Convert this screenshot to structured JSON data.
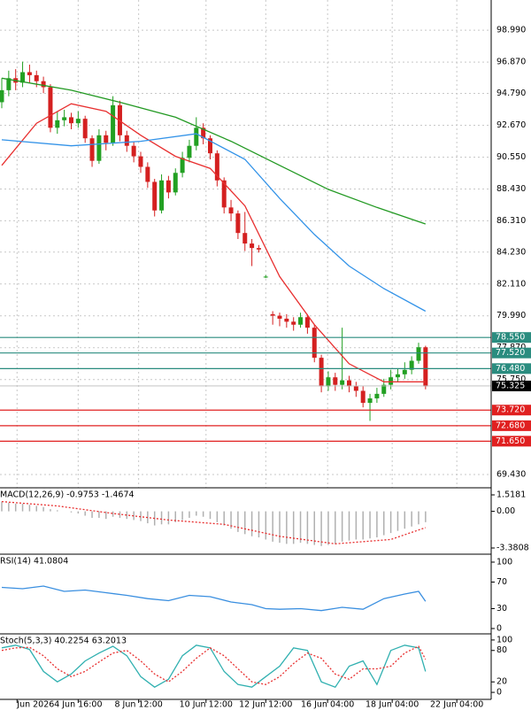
{
  "chart_data": [
    {
      "type": "candlestick",
      "up_color": "#22a022",
      "down_color": "#d42020",
      "grid": true,
      "ylim": [
        68.55,
        101.0
      ],
      "yticks": [
        {
          "value": 98.99,
          "label": "98.990"
        },
        {
          "value": 96.87,
          "label": "96.870"
        },
        {
          "value": 94.79,
          "label": "94.790"
        },
        {
          "value": 92.67,
          "label": "92.670"
        },
        {
          "value": 90.55,
          "label": "90.550"
        },
        {
          "value": 88.43,
          "label": "88.430"
        },
        {
          "value": 86.31,
          "label": "86.310"
        },
        {
          "value": 84.23,
          "label": "84.230"
        },
        {
          "value": 82.11,
          "label": "82.110"
        },
        {
          "value": 79.99,
          "label": "79.990"
        },
        {
          "value": 77.87,
          "label": "77.870"
        },
        {
          "value": 75.75,
          "label": "75.750"
        },
        {
          "value": 69.43,
          "label": "69.430"
        }
      ],
      "ohlc": [
        [
          94.2,
          95.8,
          93.8,
          95.0
        ],
        [
          95.0,
          96.3,
          94.6,
          95.8
        ],
        [
          95.8,
          96.4,
          95.0,
          95.5
        ],
        [
          95.5,
          96.9,
          95.2,
          96.2
        ],
        [
          96.2,
          96.7,
          95.5,
          96.0
        ],
        [
          96.0,
          96.3,
          95.2,
          95.6
        ],
        [
          95.6,
          95.9,
          94.8,
          95.2
        ],
        [
          95.2,
          95.4,
          92.2,
          92.5
        ],
        [
          92.5,
          93.6,
          92.1,
          93.0
        ],
        [
          93.0,
          93.7,
          92.6,
          93.2
        ],
        [
          93.2,
          93.5,
          92.4,
          92.8
        ],
        [
          92.8,
          93.6,
          92.5,
          93.1
        ],
        [
          93.1,
          93.3,
          91.5,
          91.8
        ],
        [
          91.8,
          92.0,
          89.9,
          90.3
        ],
        [
          90.3,
          92.4,
          90.1,
          92.0
        ],
        [
          92.0,
          92.3,
          91.0,
          91.5
        ],
        [
          91.5,
          94.6,
          91.3,
          94.0
        ],
        [
          94.0,
          94.3,
          91.6,
          92.0
        ],
        [
          92.0,
          92.3,
          90.9,
          91.3
        ],
        [
          91.3,
          91.6,
          90.2,
          90.6
        ],
        [
          90.6,
          90.9,
          89.5,
          89.9
        ],
        [
          89.9,
          90.2,
          88.5,
          88.9
        ],
        [
          88.9,
          89.1,
          86.6,
          87.0
        ],
        [
          87.0,
          89.4,
          86.8,
          89.0
        ],
        [
          89.0,
          89.3,
          87.8,
          88.2
        ],
        [
          88.2,
          89.8,
          88.0,
          89.5
        ],
        [
          89.5,
          90.9,
          89.2,
          90.5
        ],
        [
          90.5,
          91.7,
          90.2,
          91.3
        ],
        [
          91.3,
          93.2,
          91.0,
          92.5
        ],
        [
          92.5,
          92.8,
          91.4,
          91.8
        ],
        [
          91.8,
          92.0,
          90.4,
          90.8
        ],
        [
          90.8,
          91.0,
          88.6,
          89.0
        ],
        [
          89.0,
          89.2,
          86.8,
          87.2
        ],
        [
          87.2,
          87.7,
          86.3,
          86.8
        ],
        [
          86.8,
          87.0,
          85.1,
          85.5
        ],
        [
          85.5,
          86.9,
          84.3,
          84.8
        ],
        [
          84.8,
          85.1,
          83.3,
          84.5
        ],
        [
          84.5,
          84.7,
          84.2,
          84.4
        ],
        [
          82.6,
          82.7,
          82.5,
          82.6
        ],
        [
          80.1,
          80.3,
          79.4,
          80.0
        ],
        [
          80.0,
          80.2,
          79.3,
          79.8
        ],
        [
          79.8,
          80.1,
          79.2,
          79.6
        ],
        [
          79.6,
          79.9,
          79.0,
          79.4
        ],
        [
          79.4,
          80.2,
          79.2,
          79.9
        ],
        [
          79.9,
          80.1,
          78.8,
          79.2
        ],
        [
          79.2,
          79.4,
          76.9,
          77.2
        ],
        [
          77.2,
          77.4,
          74.9,
          75.3
        ],
        [
          75.3,
          76.3,
          75.0,
          75.9
        ],
        [
          75.9,
          76.2,
          75.0,
          75.4
        ],
        [
          75.4,
          79.2,
          75.1,
          75.7
        ],
        [
          75.7,
          76.0,
          74.9,
          75.3
        ],
        [
          75.3,
          75.6,
          74.6,
          75.0
        ],
        [
          75.0,
          75.3,
          73.9,
          74.2
        ],
        [
          74.2,
          74.8,
          73.0,
          74.5
        ],
        [
          74.5,
          75.2,
          74.2,
          74.8
        ],
        [
          74.8,
          75.8,
          74.6,
          75.4
        ],
        [
          75.4,
          76.4,
          75.1,
          75.9
        ],
        [
          75.9,
          76.5,
          75.6,
          76.1
        ],
        [
          76.1,
          76.9,
          75.8,
          76.4
        ],
        [
          76.4,
          77.3,
          76.1,
          77.0
        ],
        [
          77.0,
          78.2,
          76.8,
          77.9
        ],
        [
          77.9,
          78.0,
          75.1,
          75.3
        ]
      ],
      "lines": [
        {
          "color": "#e83030",
          "x": [
            0,
            5,
            10,
            15,
            20,
            25,
            30,
            35,
            40,
            45,
            50,
            55,
            61
          ],
          "values": [
            90.0,
            92.8,
            94.1,
            93.6,
            92.0,
            90.6,
            89.8,
            87.3,
            82.6,
            79.4,
            76.8,
            75.6,
            75.6
          ]
        },
        {
          "color": "#3393e8",
          "x": [
            0,
            10,
            20,
            28,
            35,
            40,
            45,
            50,
            55,
            61
          ],
          "values": [
            91.7,
            91.3,
            91.6,
            92.1,
            90.4,
            87.8,
            85.4,
            83.3,
            81.8,
            80.3
          ]
        },
        {
          "color": "#229922",
          "x": [
            0,
            10,
            17,
            25,
            33,
            40,
            47,
            54,
            61
          ],
          "values": [
            95.8,
            95.0,
            94.2,
            93.2,
            91.6,
            90.0,
            88.4,
            87.2,
            86.1
          ]
        }
      ],
      "levels": [
        {
          "value": 78.55,
          "label": "78.550",
          "color": "#2a8c7f"
        },
        {
          "value": 77.52,
          "label": "77.520",
          "color": "#2a8c7f"
        },
        {
          "value": 76.48,
          "label": "76.480",
          "color": "#2a8c7f"
        },
        {
          "value": 75.325,
          "label": "75.325",
          "color": "#000000"
        },
        {
          "value": 73.72,
          "label": "73.720",
          "color": "#e02020"
        },
        {
          "value": 72.68,
          "label": "72.680",
          "color": "#e02020"
        },
        {
          "value": 71.65,
          "label": "71.650",
          "color": "#e02020"
        }
      ]
    },
    {
      "type": "macd",
      "title": "MACD(12,26,9) -0.9753 -1.4674",
      "ylim": [
        -3.87,
        2.008
      ],
      "yticks": [
        1.5181,
        {
          "value": 0,
          "label": "0.00"
        },
        -3.3808
      ],
      "hist_color": "#b0b0b0",
      "values": [
        0.9,
        0.8,
        0.7,
        0.7,
        0.6,
        0.5,
        0.4,
        0.2,
        0.1,
        0.0,
        -0.1,
        -0.2,
        -0.4,
        -0.6,
        -0.6,
        -0.7,
        -0.5,
        -0.6,
        -0.7,
        -0.8,
        -0.9,
        -1.1,
        -1.3,
        -1.2,
        -1.2,
        -1.0,
        -0.8,
        -0.6,
        -0.4,
        -0.5,
        -0.7,
        -1.0,
        -1.3,
        -1.6,
        -1.9,
        -2.1,
        -2.3,
        -2.4,
        -2.6,
        -2.8,
        -2.9,
        -3.0,
        -3.0,
        -2.9,
        -3.0,
        -3.1,
        -3.2,
        -3.1,
        -3.0,
        -2.8,
        -2.7,
        -2.6,
        -2.6,
        -2.5,
        -2.4,
        -2.2,
        -2.0,
        -1.8,
        -1.6,
        -1.4,
        -1.2,
        -1.0
      ],
      "lines": [
        {
          "color": "#e83030",
          "dashed": true,
          "x": [
            0,
            8,
            16,
            24,
            32,
            40,
            48,
            56,
            61
          ],
          "values": [
            0.9,
            0.5,
            -0.2,
            -0.8,
            -1.2,
            -2.3,
            -3.0,
            -2.6,
            -1.5
          ]
        }
      ]
    },
    {
      "type": "rsi",
      "title": "RSI(14) 41.0804",
      "ylim": [
        -6.7,
        109.3
      ],
      "yticks": [
        100,
        70,
        30,
        0
      ],
      "lines": [
        {
          "color": "#3a8fe0",
          "x": [
            0,
            3,
            6,
            9,
            12,
            15,
            18,
            21,
            24,
            27,
            30,
            33,
            36,
            38,
            40,
            43,
            46,
            49,
            52,
            55,
            58,
            60,
            61
          ],
          "values": [
            62,
            60,
            64,
            56,
            58,
            54,
            50,
            45,
            42,
            50,
            48,
            40,
            36,
            30,
            29,
            30,
            27,
            32,
            29,
            45,
            52,
            56,
            41
          ]
        }
      ]
    },
    {
      "type": "stoch",
      "title": "Stoch(5,3,3) 40.2254 63.2013",
      "ylim": [
        -11.7,
        108.3
      ],
      "yticks": [
        100,
        80,
        20,
        0
      ],
      "lines": [
        {
          "color": "#30b0b0",
          "x": [
            0,
            2,
            4,
            6,
            8,
            10,
            12,
            14,
            16,
            18,
            20,
            22,
            24,
            26,
            28,
            30,
            32,
            34,
            36,
            38,
            40,
            42,
            44,
            46,
            48,
            50,
            52,
            54,
            56,
            58,
            60,
            61
          ],
          "values": [
            85,
            90,
            82,
            40,
            20,
            35,
            60,
            75,
            88,
            70,
            30,
            10,
            25,
            70,
            90,
            85,
            40,
            15,
            10,
            30,
            50,
            85,
            80,
            20,
            10,
            50,
            60,
            15,
            80,
            90,
            85,
            40
          ]
        },
        {
          "color": "#e83030",
          "dashed": true,
          "x": [
            0,
            2,
            4,
            6,
            8,
            10,
            12,
            14,
            16,
            18,
            20,
            22,
            24,
            26,
            28,
            30,
            32,
            34,
            36,
            38,
            40,
            42,
            44,
            46,
            48,
            50,
            52,
            54,
            56,
            58,
            60,
            61
          ],
          "values": [
            80,
            85,
            86,
            70,
            45,
            30,
            40,
            58,
            75,
            80,
            60,
            35,
            20,
            40,
            65,
            85,
            70,
            45,
            20,
            15,
            30,
            55,
            75,
            65,
            35,
            25,
            45,
            45,
            50,
            75,
            88,
            63
          ]
        }
      ],
      "xticks": [
        {
          "value": 2.2,
          "label": "Jun 2026"
        },
        {
          "value": 11,
          "label": "4 Jun 16:00"
        },
        {
          "value": 19.7,
          "label": "8 Jun 12:00"
        },
        {
          "value": 29.4,
          "label": "10 Jun 12:00"
        },
        {
          "value": 38,
          "label": "12 Jun 12:00"
        },
        {
          "value": 46.9,
          "label": "16 Jun 04:00"
        },
        {
          "value": 56.2,
          "label": "18 Jun 04:00"
        },
        {
          "value": 65.5,
          "label": "22 Jun 04:00"
        }
      ]
    }
  ]
}
